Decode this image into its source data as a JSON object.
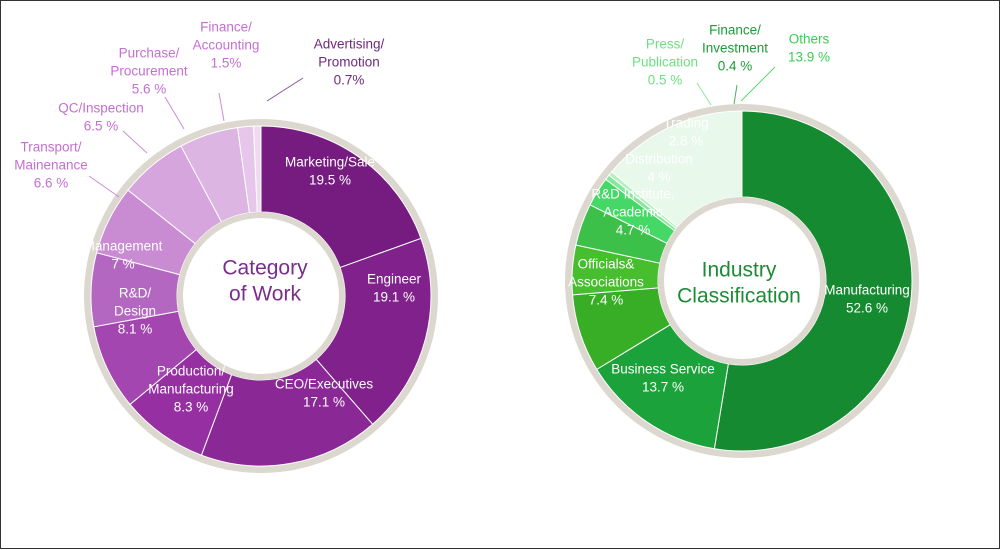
{
  "chart_data": [
    {
      "type": "pie",
      "style": "donut",
      "center_title": [
        "Category",
        "of Work"
      ],
      "center_color": "#7b2d8e",
      "ring_color": "#dcd8d0",
      "slices": [
        {
          "label": [
            "Marketing/Sale"
          ],
          "value_text": "19.5 %",
          "value": 19.5,
          "color": "#761c81",
          "text_color": "#ffffff"
        },
        {
          "label": [
            "Engineer"
          ],
          "value_text": "19.1 %",
          "value": 19.1,
          "color": "#81228c",
          "text_color": "#ffffff"
        },
        {
          "label": [
            "CEO/Executives"
          ],
          "value_text": "17.1 %",
          "value": 17.1,
          "color": "#8a2996",
          "text_color": "#ffffff"
        },
        {
          "label": [
            "Production/",
            "Manufacturing"
          ],
          "value_text": "8.3 %",
          "value": 8.3,
          "color": "#9630a2",
          "text_color": "#ffffff"
        },
        {
          "label": [
            "R&D/",
            "Design"
          ],
          "value_text": "8.1 %",
          "value": 8.1,
          "color": "#a346b0",
          "text_color": "#ffffff"
        },
        {
          "label": [
            "Management"
          ],
          "value_text": "7 %",
          "value": 7.0,
          "color": "#b467c0",
          "text_color": "#ffffff"
        },
        {
          "label": [
            "Transport/",
            "Mainenance"
          ],
          "value_text": "6.6 %",
          "value": 6.6,
          "color": "#c98bd2",
          "text_color": "#c56fd2"
        },
        {
          "label": [
            "QC/Inspection"
          ],
          "value_text": "6.5 %",
          "value": 6.5,
          "color": "#d6a5dd",
          "text_color": "#c56fd2"
        },
        {
          "label": [
            "Purchase/",
            "Procurement"
          ],
          "value_text": "5.6 %",
          "value": 5.6,
          "color": "#ddb5e3",
          "text_color": "#c56fd2"
        },
        {
          "label": [
            "Finance/",
            "Accounting"
          ],
          "value_text": "1.5%",
          "value": 1.5,
          "color": "#e6c6ea",
          "text_color": "#c56fd2"
        },
        {
          "label": [
            "Advertising/",
            "Promotion"
          ],
          "value_text": "0.7%",
          "value": 0.7,
          "color": "#efdaf1",
          "text_color": "#6e2a7e"
        }
      ]
    },
    {
      "type": "pie",
      "style": "donut",
      "center_title": [
        "Industry",
        "Classification"
      ],
      "center_color": "#1e8a36",
      "ring_color": "#dcd8d0",
      "slices": [
        {
          "label": [
            "Manufacturing"
          ],
          "value_text": "52.6 %",
          "value": 52.6,
          "color": "#168a30",
          "text_color": "#ffffff"
        },
        {
          "label": [
            "Business Service"
          ],
          "value_text": "13.7 %",
          "value": 13.7,
          "color": "#1ca23a",
          "text_color": "#ffffff"
        },
        {
          "label": [
            "Officials&",
            "Associations"
          ],
          "value_text": "7.4 %",
          "value": 7.4,
          "color": "#38ae26",
          "text_color": "#ffffff"
        },
        {
          "label": [
            "R&D Institute,",
            "Academic"
          ],
          "value_text": "4.7 %",
          "value": 4.7,
          "color": "#46be2e",
          "text_color": "#ffffff"
        },
        {
          "label": [
            "Distribution"
          ],
          "value_text": "4 %",
          "value": 4.0,
          "color": "#3cc04a",
          "text_color": "#ffffff"
        },
        {
          "label": [
            "Trading"
          ],
          "value_text": "2.8 %",
          "value": 2.8,
          "color": "#46d866",
          "text_color": "#ffffff"
        },
        {
          "label": [
            "Press/",
            "Publication"
          ],
          "value_text": "0.5 %",
          "value": 0.5,
          "color": "#86e69a",
          "text_color": "#6ee082"
        },
        {
          "label": [
            "Finance/",
            "Investment"
          ],
          "value_text": "0.4 %",
          "value": 0.4,
          "color": "#b4f0c0",
          "text_color": "#1f9a3a"
        },
        {
          "label": [
            "Others"
          ],
          "value_text": "13.9 %",
          "value": 13.9,
          "color": "#e8f8ea",
          "text_color": "#3ccc52"
        }
      ]
    }
  ]
}
